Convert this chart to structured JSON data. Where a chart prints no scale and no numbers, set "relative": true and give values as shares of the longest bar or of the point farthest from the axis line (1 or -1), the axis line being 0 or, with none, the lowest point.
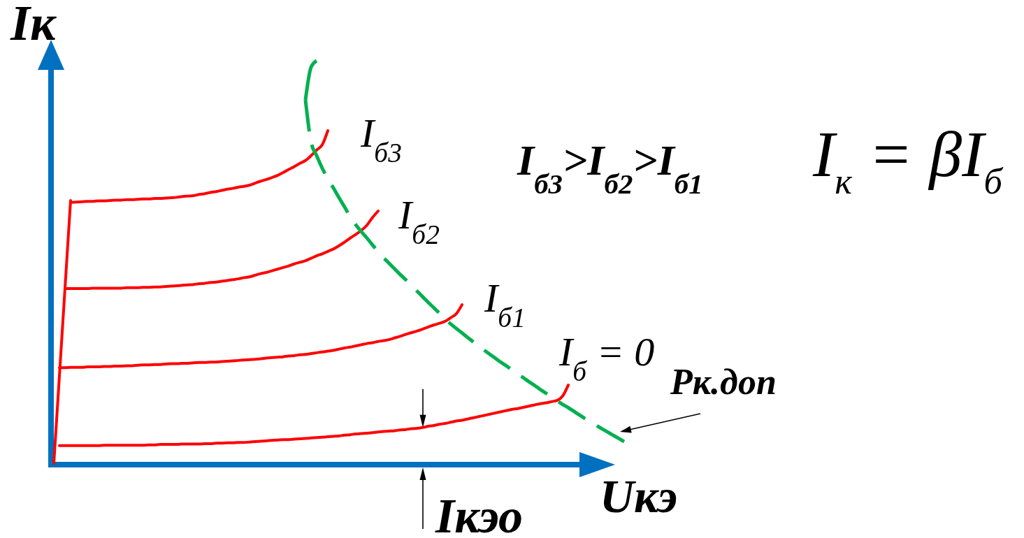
{
  "chart_data": {
    "type": "line",
    "relative": true,
    "xlabel": "Uкэ",
    "ylabel": "Iк",
    "annotations": [
      "I$_{б3}$>I$_{б2}$>I$_{б1}$",
      "I$_{к}$ = βI$_{б}$",
      "Iкэо"
    ],
    "categories": [
      null,
      null,
      null,
      null,
      null,
      null,
      null,
      null,
      null,
      null,
      null,
      null,
      null,
      null,
      null,
      null,
      null,
      null,
      null,
      null,
      null,
      null,
      null,
      null,
      null,
      null,
      null,
      null,
      null,
      null,
      null,
      null,
      null,
      null,
      null,
      null,
      null,
      null,
      null,
      null,
      null,
      null,
      null,
      null,
      null,
      null,
      null,
      null,
      null,
      null,
      null,
      null,
      null,
      null,
      null,
      null,
      null,
      null,
      null,
      null,
      null,
      null,
      null,
      null,
      null,
      null,
      null,
      null,
      null,
      null,
      null,
      null,
      null,
      null,
      null,
      null,
      null,
      null,
      null,
      null,
      null,
      null,
      null,
      null,
      null,
      null,
      null,
      null,
      null,
      null,
      null,
      null,
      null,
      null,
      null,
      null,
      null,
      null,
      null,
      null,
      null,
      null,
      null
    ],
    "series": [
      {
        "color": "#ff0000",
        "values": [
          0.003,
          0.22,
          0.437,
          0.654,
          null,
          null,
          null,
          null,
          null,
          null,
          null,
          null,
          null,
          null,
          null,
          null,
          null,
          null,
          null,
          null,
          null,
          null,
          null,
          null,
          null,
          null,
          null,
          null,
          null,
          null,
          null,
          null,
          null,
          null,
          null,
          null,
          null,
          null,
          null,
          null,
          null,
          null,
          null,
          null,
          null,
          null,
          null,
          null,
          null,
          null,
          null,
          null,
          null,
          null,
          null,
          null,
          null,
          null,
          null,
          null,
          null,
          null,
          null,
          null,
          null,
          null,
          null,
          null,
          null,
          null,
          null,
          null,
          null,
          null,
          null,
          null,
          null,
          null,
          null,
          null,
          null,
          null,
          null,
          null,
          null,
          null,
          null,
          null,
          null,
          null,
          null,
          null,
          null,
          null,
          null,
          null,
          null,
          null,
          null,
          null,
          null,
          null,
          null
        ]
      },
      {
        "name": "I$_{б3}$",
        "color": "#ff0000",
        "values": [
          null,
          null,
          null,
          0.649,
          0.65,
          0.651,
          0.652,
          0.652,
          0.653,
          0.653,
          0.654,
          0.655,
          0.655,
          0.656,
          0.656,
          0.657,
          0.658,
          0.658,
          0.659,
          0.659,
          0.66,
          0.661,
          0.662,
          0.664,
          0.665,
          0.666,
          0.669,
          0.671,
          0.674,
          0.676,
          0.679,
          0.682,
          0.684,
          0.687,
          0.689,
          0.692,
          0.697,
          0.702,
          0.706,
          0.711,
          0.716,
          0.723,
          0.731,
          0.738,
          0.746,
          0.753,
          0.765,
          0.779,
          0.792,
          0.827,
          null,
          null,
          null,
          null,
          null,
          null,
          null,
          null,
          null,
          null,
          null,
          null,
          null,
          null,
          null,
          null,
          null,
          null,
          null,
          null,
          null,
          null,
          null,
          null,
          null,
          null,
          null,
          null,
          null,
          null,
          null,
          null,
          null,
          null,
          null,
          null,
          null,
          null,
          null,
          null,
          null,
          null,
          null,
          null,
          null,
          null,
          null,
          null,
          null,
          null,
          null,
          null,
          null
        ]
      },
      {
        "name": "I$_{б2}$",
        "color": "#ff0000",
        "values": [
          null,
          null,
          0.436,
          0.436,
          0.436,
          0.436,
          0.436,
          0.437,
          0.437,
          0.437,
          0.437,
          0.437,
          0.437,
          0.438,
          0.438,
          0.438,
          0.439,
          0.439,
          0.44,
          0.44,
          0.441,
          0.442,
          0.443,
          0.444,
          0.445,
          0.446,
          0.448,
          0.449,
          0.451,
          0.452,
          0.454,
          0.456,
          0.458,
          0.46,
          0.463,
          0.465,
          0.469,
          0.473,
          0.476,
          0.48,
          0.484,
          0.488,
          0.492,
          0.497,
          0.501,
          0.505,
          0.511,
          0.517,
          0.522,
          0.528,
          0.534,
          0.542,
          0.551,
          0.561,
          0.57,
          0.58,
          0.593,
          0.612,
          0.628,
          null,
          null,
          null,
          null,
          null,
          null,
          null,
          null,
          null,
          null,
          null,
          null,
          null,
          null,
          null,
          null,
          null,
          null,
          null,
          null,
          null,
          null,
          null,
          null,
          null,
          null,
          null,
          null,
          null,
          null,
          null,
          null,
          null,
          null,
          null,
          null,
          null,
          null,
          null,
          null,
          null,
          null,
          null,
          null
        ]
      },
      {
        "name": "I$_{б1}$",
        "color": "#ff0000",
        "values": [
          null,
          0.24,
          0.24,
          0.241,
          0.241,
          0.241,
          0.242,
          0.242,
          0.242,
          0.243,
          0.243,
          0.244,
          0.244,
          0.245,
          0.245,
          0.246,
          0.247,
          0.247,
          0.248,
          0.248,
          0.249,
          0.25,
          0.25,
          0.251,
          0.251,
          0.252,
          0.253,
          0.253,
          0.254,
          0.254,
          0.255,
          0.256,
          0.257,
          0.258,
          0.259,
          0.26,
          0.261,
          0.262,
          0.264,
          0.265,
          0.266,
          0.267,
          0.269,
          0.27,
          0.272,
          0.273,
          0.275,
          0.277,
          0.279,
          0.281,
          0.283,
          0.286,
          0.289,
          0.291,
          0.294,
          0.297,
          0.3,
          0.302,
          0.305,
          0.307,
          0.31,
          0.314,
          0.318,
          0.323,
          0.327,
          0.331,
          0.336,
          0.341,
          0.346,
          0.35,
          0.355,
          0.364,
          0.374,
          0.396,
          null,
          null,
          null,
          null,
          null,
          null,
          null,
          null,
          null,
          null,
          null,
          null,
          null,
          null,
          null,
          null,
          null,
          null,
          null,
          null,
          null,
          null,
          null,
          null,
          null,
          null,
          null,
          null,
          null
        ]
      },
      {
        "name": "I$_{б}$ = 0",
        "color": "#ff0000",
        "values": [
          null,
          0.047,
          0.047,
          0.047,
          0.047,
          0.047,
          0.047,
          0.047,
          0.047,
          0.048,
          0.048,
          0.048,
          0.048,
          0.048,
          0.048,
          0.048,
          0.048,
          0.049,
          0.049,
          0.05,
          0.05,
          0.05,
          0.05,
          0.051,
          0.051,
          0.051,
          0.051,
          0.052,
          0.052,
          0.053,
          0.053,
          0.054,
          0.054,
          0.055,
          0.055,
          0.056,
          0.057,
          0.058,
          0.059,
          0.06,
          0.061,
          0.062,
          0.062,
          0.063,
          0.064,
          0.065,
          0.066,
          0.067,
          0.068,
          0.069,
          0.07,
          0.071,
          0.073,
          0.074,
          0.076,
          0.077,
          0.078,
          0.079,
          0.081,
          0.082,
          0.083,
          0.084,
          0.086,
          0.087,
          0.089,
          0.09,
          0.092,
          0.095,
          0.097,
          0.1,
          0.102,
          0.105,
          0.108,
          0.11,
          0.113,
          0.116,
          0.119,
          0.122,
          0.125,
          0.128,
          0.131,
          0.134,
          0.137,
          0.139,
          0.142,
          0.145,
          0.148,
          0.151,
          0.153,
          0.156,
          0.159,
          0.17,
          0.197,
          null,
          null,
          null,
          null,
          null,
          null,
          null,
          null,
          null,
          null
        ]
      },
      {
        "name": "Pк.доп",
        "color": "#00b050",
        "line_style": "dashed",
        "values": [
          null,
          null,
          null,
          null,
          null,
          null,
          null,
          null,
          null,
          null,
          null,
          null,
          null,
          null,
          null,
          null,
          null,
          null,
          null,
          null,
          null,
          null,
          null,
          null,
          null,
          null,
          null,
          null,
          null,
          null,
          null,
          null,
          null,
          null,
          null,
          null,
          null,
          null,
          null,
          null,
          null,
          null,
          null,
          null,
          null,
          0.903,
          0.799,
          0.765,
          0.734,
          0.708,
          0.685,
          0.661,
          0.638,
          0.614,
          0.594,
          0.577,
          0.561,
          0.544,
          0.527,
          0.512,
          0.498,
          0.484,
          0.47,
          0.457,
          0.443,
          0.429,
          0.415,
          0.401,
          0.388,
          0.374,
          0.36,
          0.348,
          0.337,
          0.326,
          0.315,
          0.304,
          0.293,
          0.283,
          0.273,
          0.263,
          0.253,
          0.244,
          0.234,
          0.224,
          0.215,
          0.205,
          0.196,
          0.186,
          0.177,
          0.167,
          0.158,
          0.149,
          0.141,
          0.132,
          0.123,
          0.114,
          0.106,
          0.097,
          0.089,
          0.081,
          0.073,
          0.065,
          0.057
        ]
      },
      {
        "color": "#00b050",
        "line_style": "dashed",
        "values": [
          null,
          null,
          null,
          null,
          null,
          null,
          null,
          null,
          null,
          null,
          null,
          null,
          null,
          null,
          null,
          null,
          null,
          null,
          null,
          null,
          null,
          null,
          null,
          null,
          null,
          null,
          null,
          null,
          null,
          null,
          null,
          null,
          null,
          null,
          null,
          null,
          null,
          null,
          null,
          null,
          null,
          null,
          null,
          null,
          null,
          0.903,
          0.984,
          1.0,
          null,
          null,
          null,
          null,
          null,
          null,
          null,
          null,
          null,
          null,
          null,
          null,
          null,
          null,
          null,
          null,
          null,
          null,
          null,
          null,
          null,
          null,
          null,
          null,
          null,
          null,
          null,
          null,
          null,
          null,
          null,
          null,
          null,
          null,
          null,
          null,
          null,
          null,
          null,
          null,
          null,
          null,
          null,
          null,
          null,
          null,
          null,
          null,
          null,
          null,
          null,
          null,
          null,
          null,
          null
        ]
      }
    ]
  }
}
